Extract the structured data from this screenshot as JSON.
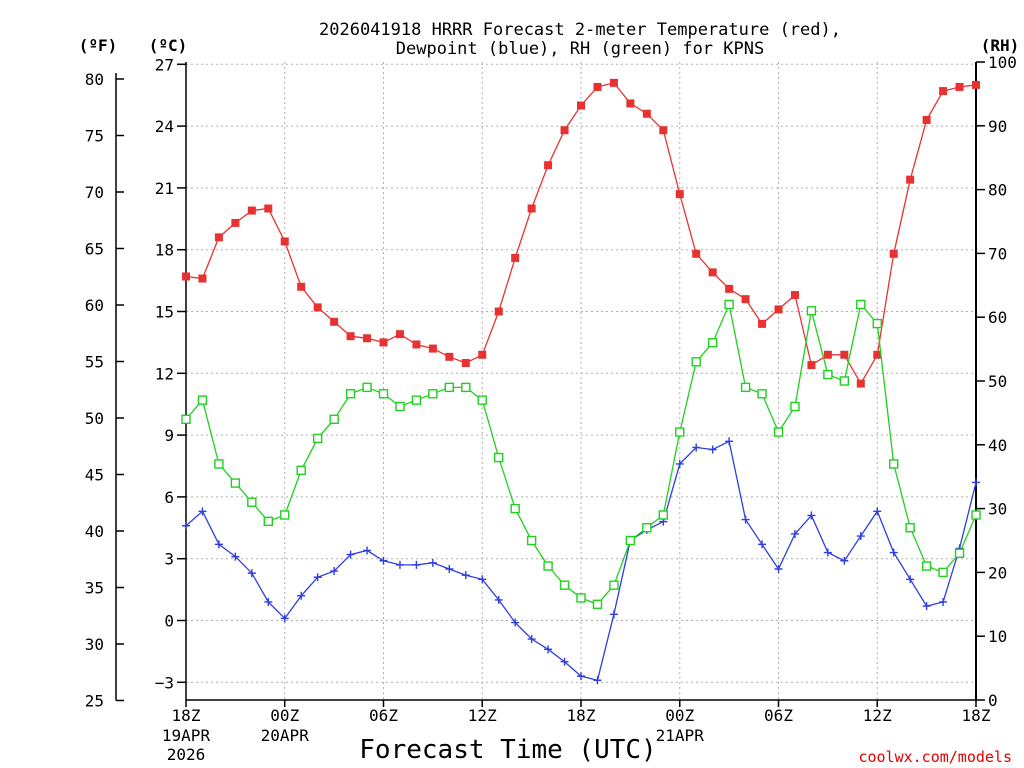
{
  "chart_data": {
    "type": "line",
    "title_line1": "2026041918 HRRR Forecast 2-meter Temperature (red),",
    "title_line2": "Dewpoint (blue), RH (green) for KPNS",
    "xlabel": "Forecast Time (UTC)",
    "watermark": "coolwx.com/models",
    "unit_f": "(ºF)",
    "unit_c": "(ºC)",
    "unit_rh": "(RH)",
    "x_range_hours": [
      0,
      48
    ],
    "y_left_c_range": [
      -4,
      27.5
    ],
    "y_left_f_range": [
      25,
      81.5
    ],
    "y_right_rh_range": [
      0,
      100
    ],
    "x_ticks": [
      {
        "h": 0,
        "label": "18Z",
        "sub1": "19APR",
        "sub2": "2026"
      },
      {
        "h": 6,
        "label": "00Z",
        "sub1": "20APR",
        "sub2": ""
      },
      {
        "h": 12,
        "label": "06Z",
        "sub1": "",
        "sub2": ""
      },
      {
        "h": 18,
        "label": "12Z",
        "sub1": "",
        "sub2": ""
      },
      {
        "h": 24,
        "label": "18Z",
        "sub1": "",
        "sub2": ""
      },
      {
        "h": 30,
        "label": "00Z",
        "sub1": "21APR",
        "sub2": ""
      },
      {
        "h": 36,
        "label": "06Z",
        "sub1": "",
        "sub2": ""
      },
      {
        "h": 42,
        "label": "12Z",
        "sub1": "",
        "sub2": ""
      },
      {
        "h": 48,
        "label": "18Z",
        "sub1": "",
        "sub2": ""
      }
    ],
    "y_ticks_c": [
      {
        "v": -3,
        "label": "−3"
      },
      {
        "v": 0,
        "label": "0"
      },
      {
        "v": 3,
        "label": "3"
      },
      {
        "v": 6,
        "label": "6"
      },
      {
        "v": 9,
        "label": "9"
      },
      {
        "v": 12,
        "label": "12"
      },
      {
        "v": 15,
        "label": "15"
      },
      {
        "v": 18,
        "label": "18"
      },
      {
        "v": 21,
        "label": "21"
      },
      {
        "v": 24,
        "label": "24"
      },
      {
        "v": 27,
        "label": "27"
      }
    ],
    "y_ticks_f": [
      "25",
      "30",
      "35",
      "40",
      "45",
      "50",
      "55",
      "60",
      "65",
      "70",
      "75",
      "80"
    ],
    "y_ticks_rh": [
      "0",
      "10",
      "20",
      "30",
      "40",
      "50",
      "60",
      "70",
      "80",
      "90",
      "100"
    ],
    "series": [
      {
        "name": "Temperature",
        "color": "#e83232",
        "marker": "filled-square",
        "axis": "celsius",
        "x": [
          0,
          1,
          2,
          3,
          4,
          5,
          6,
          7,
          8,
          9,
          10,
          11,
          12,
          13,
          14,
          15,
          16,
          17,
          18,
          19,
          20,
          21,
          22,
          23,
          24,
          25,
          26,
          27,
          28,
          29,
          30,
          31,
          32,
          33,
          34,
          35,
          36,
          37,
          38,
          39,
          40,
          41,
          42,
          43,
          44,
          45,
          46,
          47,
          48
        ],
        "y": [
          16.7,
          16.6,
          18.6,
          19.3,
          19.9,
          20.0,
          18.4,
          16.2,
          15.2,
          14.5,
          13.8,
          13.7,
          13.5,
          13.9,
          13.4,
          13.2,
          12.8,
          12.5,
          12.9,
          15.0,
          17.6,
          20.0,
          22.1,
          23.8,
          25.0,
          25.9,
          26.1,
          25.1,
          24.6,
          23.8,
          20.7,
          17.8,
          16.9,
          16.1,
          15.6,
          14.4,
          15.1,
          15.8,
          12.4,
          12.9,
          12.9,
          11.5,
          12.9,
          17.8,
          21.4,
          24.3,
          25.7,
          25.9,
          26.0
        ]
      },
      {
        "name": "Dewpoint",
        "color": "#2e3ee0",
        "marker": "plus",
        "axis": "celsius",
        "x": [
          0,
          1,
          2,
          3,
          4,
          5,
          6,
          7,
          8,
          9,
          10,
          11,
          12,
          13,
          14,
          15,
          16,
          17,
          18,
          19,
          20,
          21,
          22,
          23,
          24,
          25,
          26,
          27,
          28,
          29,
          30,
          31,
          32,
          33,
          34,
          35,
          36,
          37,
          38,
          39,
          40,
          41,
          42,
          43,
          44,
          45,
          46,
          47,
          48
        ],
        "y": [
          4.6,
          5.3,
          3.7,
          3.1,
          2.3,
          0.9,
          0.1,
          1.2,
          2.1,
          2.4,
          3.2,
          3.4,
          2.9,
          2.7,
          2.7,
          2.8,
          2.5,
          2.2,
          2.0,
          1.0,
          -0.1,
          -0.9,
          -1.4,
          -2.0,
          -2.7,
          -2.9,
          0.3,
          3.9,
          4.4,
          4.8,
          7.6,
          8.4,
          8.3,
          8.7,
          4.9,
          3.7,
          2.5,
          4.2,
          5.1,
          3.3,
          2.9,
          4.1,
          5.3,
          3.3,
          2.0,
          0.7,
          0.9,
          3.5,
          6.7
        ]
      },
      {
        "name": "RH",
        "color": "#1fd11f",
        "marker": "open-square",
        "axis": "rh",
        "x": [
          0,
          1,
          2,
          3,
          4,
          5,
          6,
          7,
          8,
          9,
          10,
          11,
          12,
          13,
          14,
          15,
          16,
          17,
          18,
          19,
          20,
          21,
          22,
          23,
          24,
          25,
          26,
          27,
          28,
          29,
          30,
          31,
          32,
          33,
          34,
          35,
          36,
          37,
          38,
          39,
          40,
          41,
          42,
          43,
          44,
          45,
          46,
          47,
          48
        ],
        "y": [
          44,
          47,
          37,
          34,
          31,
          28,
          29,
          36,
          41,
          44,
          48,
          49,
          48,
          46,
          47,
          48,
          49,
          49,
          47,
          38,
          30,
          25,
          21,
          18,
          16,
          15,
          18,
          25,
          27,
          29,
          42,
          53,
          56,
          62,
          49,
          48,
          42,
          46,
          61,
          51,
          50,
          62,
          59,
          37,
          27,
          21,
          20,
          23,
          29
        ]
      }
    ]
  }
}
